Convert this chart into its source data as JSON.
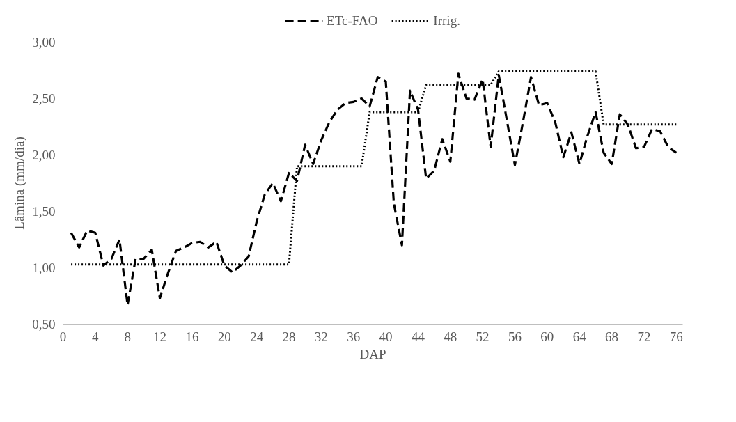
{
  "chart_data": {
    "type": "line",
    "xlabel": "DAP",
    "ylabel": "Lâmina (mm/dia)",
    "x": [
      1,
      2,
      3,
      4,
      5,
      6,
      7,
      8,
      9,
      10,
      11,
      12,
      13,
      14,
      15,
      16,
      17,
      18,
      19,
      20,
      21,
      22,
      23,
      24,
      25,
      26,
      27,
      28,
      29,
      30,
      31,
      32,
      33,
      34,
      35,
      36,
      37,
      38,
      39,
      40,
      41,
      42,
      43,
      44,
      45,
      46,
      47,
      48,
      49,
      50,
      51,
      52,
      53,
      54,
      55,
      56,
      57,
      58,
      59,
      60,
      61,
      62,
      63,
      64,
      65,
      66,
      67,
      68,
      69,
      70,
      71,
      72,
      73,
      74,
      75,
      76
    ],
    "series": [
      {
        "name": "ETc-FAO",
        "color": "#000000",
        "line_style": "dashed",
        "values": [
          1.31,
          1.18,
          1.33,
          1.31,
          1.02,
          1.08,
          1.25,
          0.67,
          1.08,
          1.08,
          1.16,
          0.73,
          0.95,
          1.15,
          1.18,
          1.22,
          1.23,
          1.18,
          1.23,
          1.02,
          0.96,
          1.02,
          1.1,
          1.41,
          1.65,
          1.75,
          1.59,
          1.84,
          1.77,
          2.09,
          1.92,
          2.13,
          2.29,
          2.4,
          2.46,
          2.47,
          2.5,
          2.43,
          2.69,
          2.65,
          1.57,
          1.2,
          2.57,
          2.4,
          1.79,
          1.86,
          2.14,
          1.94,
          2.72,
          2.5,
          2.49,
          2.67,
          2.07,
          2.71,
          2.31,
          1.91,
          2.29,
          2.69,
          2.44,
          2.46,
          2.29,
          1.98,
          2.2,
          1.92,
          2.17,
          2.38,
          2.02,
          1.92,
          2.36,
          2.27,
          2.06,
          2.07,
          2.23,
          2.21,
          2.07,
          2.02
        ]
      },
      {
        "name": "Irrig.",
        "color": "#000000",
        "line_style": "dotted",
        "values": [
          1.03,
          1.03,
          1.03,
          1.03,
          1.03,
          1.03,
          1.03,
          1.03,
          1.03,
          1.03,
          1.03,
          1.03,
          1.03,
          1.03,
          1.03,
          1.03,
          1.03,
          1.03,
          1.03,
          1.03,
          1.03,
          1.03,
          1.03,
          1.03,
          1.03,
          1.03,
          1.03,
          1.03,
          1.9,
          1.9,
          1.9,
          1.9,
          1.9,
          1.9,
          1.9,
          1.9,
          1.9,
          2.38,
          2.38,
          2.38,
          2.38,
          2.38,
          2.38,
          2.38,
          2.62,
          2.62,
          2.62,
          2.62,
          2.62,
          2.62,
          2.62,
          2.62,
          2.62,
          2.74,
          2.74,
          2.74,
          2.74,
          2.74,
          2.74,
          2.74,
          2.74,
          2.74,
          2.74,
          2.74,
          2.74,
          2.74,
          2.27,
          2.27,
          2.27,
          2.27,
          2.27,
          2.27,
          2.27,
          2.27,
          2.27,
          2.27
        ]
      }
    ],
    "xlim": [
      0,
      76.8
    ],
    "xticks": [
      0,
      4,
      8,
      12,
      16,
      20,
      24,
      28,
      32,
      36,
      40,
      44,
      48,
      52,
      56,
      60,
      64,
      68,
      72,
      76
    ],
    "ylim": [
      0.5,
      3.0
    ],
    "yticks": [
      {
        "value": 0.5,
        "label": "0,50"
      },
      {
        "value": 1.0,
        "label": "1,00"
      },
      {
        "value": 1.5,
        "label": "1,50"
      },
      {
        "value": 2.0,
        "label": "2,00"
      },
      {
        "value": 2.5,
        "label": "2,50"
      },
      {
        "value": 3.0,
        "label": "3,00"
      }
    ],
    "grid": false,
    "legend": "top",
    "marker": "none"
  }
}
